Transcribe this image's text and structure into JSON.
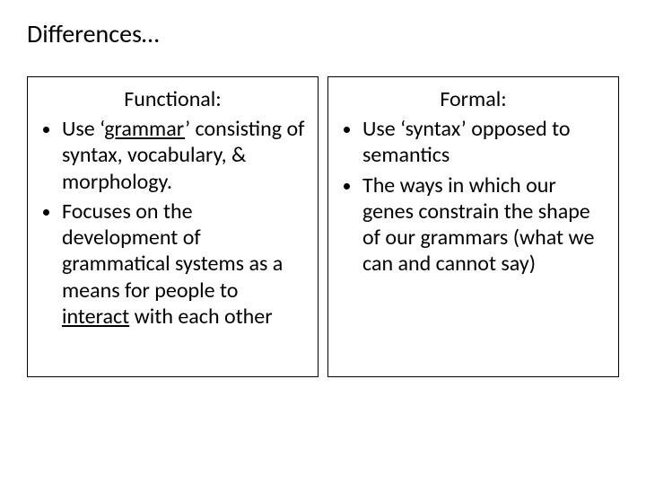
{
  "slide": {
    "title": "Differences…",
    "left": {
      "heading": "Functional:",
      "b1_pre": "Use ‘",
      "b1_u": "grammar",
      "b1_post": "’ consisting of syntax, vocabulary, & morphology.",
      "b2_pre": "Focuses on the development of grammatical systems as a means for people to ",
      "b2_u": "interact",
      "b2_post": " with each other"
    },
    "right": {
      "heading": "Formal:",
      "b1": "Use ‘syntax’ opposed to semantics",
      "b2": "The ways in which our genes constrain the shape of our grammars (what we can and cannot say)"
    }
  },
  "colors": {
    "text": "#000000",
    "background": "#ffffff",
    "border": "#000000"
  },
  "fontsize": {
    "title": 28,
    "body": 24
  }
}
